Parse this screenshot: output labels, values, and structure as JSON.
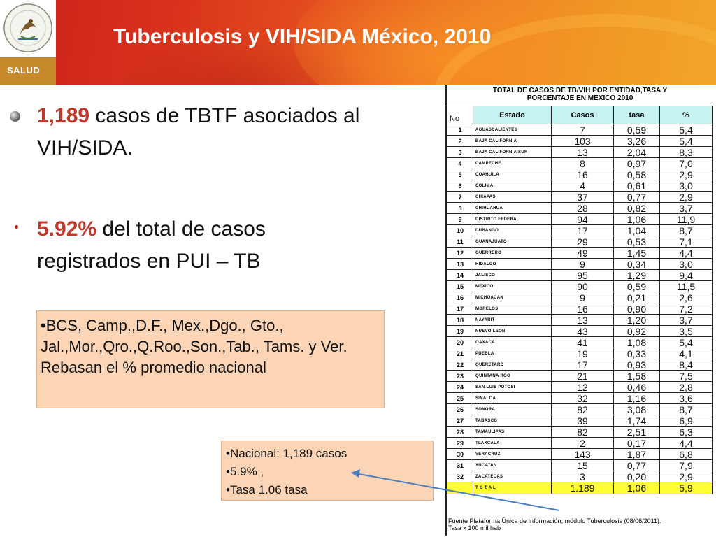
{
  "header": {
    "title": "Tuberculosis y VIH/SIDA México, 2010",
    "org_label": "SALUD",
    "seal_text": "ESTADOS UNIDOS MEXICANOS"
  },
  "bullets": [
    {
      "highlight": "1,189",
      "text": " casos de TBTF asociados al  VIH/SIDA."
    },
    {
      "highlight": "5.92%",
      "text": " del total de casos registrados en PUI – TB"
    }
  ],
  "note_states": "•BCS, Camp.,D.F., Mex.,Dgo., Gto., Jal.,Mor.,Qro.,Q.Roo.,Son.,Tab., Tams. y Ver. Rebasan el % promedio nacional",
  "note_national": [
    "•Nacional: 1,189 casos",
    "•5.9% ,",
    "•Tasa 1.06 tasa"
  ],
  "table": {
    "title_line1": "TOTAL DE CASOS DE TB/VIH POR ENTIDAD,TASA Y",
    "title_line2": "PORCENTAJE  EN MÉXICO 2010",
    "headers": [
      "No",
      "Estado",
      "Casos",
      "tasa",
      "%"
    ],
    "rows": [
      [
        "1",
        "AGUASCALIENTES",
        "7",
        "0,59",
        "5,4"
      ],
      [
        "2",
        "BAJA CALIFORNIA",
        "103",
        "3,26",
        "5,4"
      ],
      [
        "3",
        "BAJA CALIFORNIA SUR",
        "13",
        "2,04",
        "8,3"
      ],
      [
        "4",
        "CAMPECHE",
        "8",
        "0,97",
        "7,0"
      ],
      [
        "5",
        "COAHUILA",
        "16",
        "0,58",
        "2,9"
      ],
      [
        "6",
        "COLIMA",
        "4",
        "0,61",
        "3,0"
      ],
      [
        "7",
        "CHIAPAS",
        "37",
        "0,77",
        "2,9"
      ],
      [
        "8",
        "CHIHUAHUA",
        "28",
        "0,82",
        "3,7"
      ],
      [
        "9",
        "DISTRITO FEDERAL",
        "94",
        "1,06",
        "11,9"
      ],
      [
        "10",
        "DURANGO",
        "17",
        "1,04",
        "8,7"
      ],
      [
        "11",
        "GUANAJUATO",
        "29",
        "0,53",
        "7,1"
      ],
      [
        "12",
        "GUERRERO",
        "49",
        "1,45",
        "4,4"
      ],
      [
        "13",
        "HIDALGO",
        "9",
        "0,34",
        "3,0"
      ],
      [
        "14",
        "JALISCO",
        "95",
        "1,29",
        "9,4"
      ],
      [
        "15",
        "MEXICO",
        "90",
        "0,59",
        "11,5"
      ],
      [
        "16",
        "MICHOACAN",
        "9",
        "0,21",
        "2,6"
      ],
      [
        "17",
        "MORELOS",
        "16",
        "0,90",
        "7,2"
      ],
      [
        "18",
        "NAYARIT",
        "13",
        "1,20",
        "3,7"
      ],
      [
        "19",
        "NUEVO LEON",
        "43",
        "0,92",
        "3,5"
      ],
      [
        "20",
        "OAXACA",
        "41",
        "1,08",
        "5,4"
      ],
      [
        "21",
        "PUEBLA",
        "19",
        "0,33",
        "4,1"
      ],
      [
        "22",
        "QUERETARO",
        "17",
        "0,93",
        "8,4"
      ],
      [
        "23",
        "QUINTANA ROO",
        "21",
        "1,58",
        "7,5"
      ],
      [
        "24",
        "SAN LUIS POTOSI",
        "12",
        "0,46",
        "2,8"
      ],
      [
        "25",
        "SINALOA",
        "32",
        "1,16",
        "3,6"
      ],
      [
        "26",
        "SONORA",
        "82",
        "3,08",
        "8,7"
      ],
      [
        "27",
        "TABASCO",
        "39",
        "1,74",
        "6,9"
      ],
      [
        "28",
        "TAMAULIPAS",
        "82",
        "2,51",
        "6,3"
      ],
      [
        "29",
        "TLAXCALA",
        "2",
        "0,17",
        "4,4"
      ],
      [
        "30",
        "VERACRUZ",
        "143",
        "1,87",
        "6,8"
      ],
      [
        "31",
        "YUCATAN",
        "15",
        "0,77",
        "7,9"
      ],
      [
        "32",
        "ZACATECAS",
        "3",
        "0,20",
        "2,9"
      ]
    ],
    "total": [
      "",
      "T O T A L",
      "1.189",
      "1,06",
      "5,9"
    ],
    "source_line1": "Fuente Plataforma Única de Información, módulo Tuberculosis (08/06/2011).",
    "source_line2": "Tasa x 100 mil hab"
  },
  "colors": {
    "banner_red": "#c8201a",
    "banner_orange": "#f09a26",
    "highlight_red": "#c0392b",
    "note_bg": "#fbd5b5",
    "header_cell_bg": "#c6f2f2",
    "total_bg": "#ffff33",
    "arrow": "#4a7ec0"
  }
}
